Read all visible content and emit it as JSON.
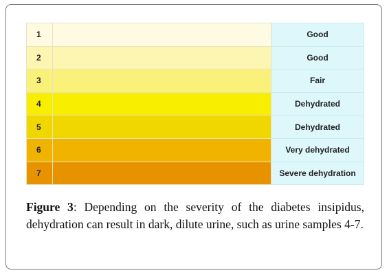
{
  "table": {
    "rows": [
      {
        "number": "1",
        "label": "Good",
        "color": "#fffbe3"
      },
      {
        "number": "2",
        "label": "Good",
        "color": "#fcf6b2"
      },
      {
        "number": "3",
        "label": "Fair",
        "color": "#faf17a"
      },
      {
        "number": "4",
        "label": "Dehydrated",
        "color": "#f7ee00"
      },
      {
        "number": "5",
        "label": "Dehydrated",
        "color": "#f0d700"
      },
      {
        "number": "6",
        "label": "Very dehydrated",
        "color": "#f0b300"
      },
      {
        "number": "7",
        "label": "Severe dehydration",
        "color": "#e79300"
      }
    ]
  },
  "caption": {
    "label": "Figure 3",
    "text": ": Depending on the severity of the diabetes insipidus, dehydration can result in dark, dilute urine, such as urine samples 4-7."
  }
}
